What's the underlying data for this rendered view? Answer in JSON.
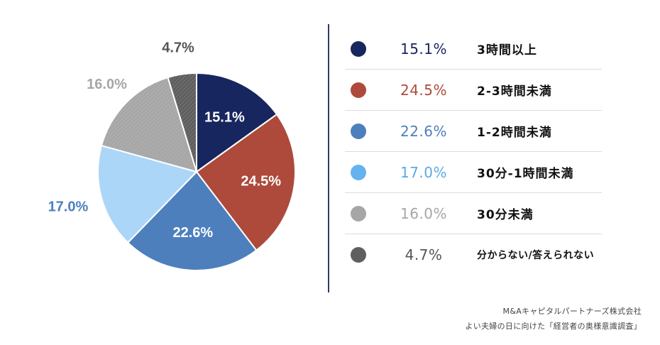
{
  "chart_data": {
    "type": "pie",
    "slices": [
      {
        "label": "3時間以上",
        "value": 15.1,
        "display": "15.1%",
        "color": "#17265e"
      },
      {
        "label": "2-3時間未満",
        "value": 24.5,
        "display": "24.5%",
        "color": "#ad4a3b"
      },
      {
        "label": "1-2時間未満",
        "value": 22.6,
        "display": "22.6%",
        "color": "#4d7fbd"
      },
      {
        "label": "30分-1時間未満",
        "value": 17.0,
        "display": "17.0%",
        "color": "#abd6f8"
      },
      {
        "label": "30分未満",
        "value": 16.0,
        "display": "16.0%",
        "color": "#a6a6a6"
      },
      {
        "label": "分からない/答えられない",
        "value": 4.7,
        "display": "4.7%",
        "color": "#5f5f5f"
      }
    ]
  },
  "legend": {
    "pct_colors": [
      "#17265e",
      "#ad4a3b",
      "#4d7fbd",
      "#5aa9e6",
      "#a6a6a6",
      "#555555"
    ],
    "dot_colors": [
      "#17265e",
      "#ad4a3b",
      "#4d7fbd",
      "#64b2ee",
      "#a6a6a6",
      "#5f5f5f"
    ]
  },
  "source": {
    "line1": "M&Aキャピタルパートナーズ株式会社",
    "line2": "よい夫婦の日に向けた「経営者の奥様意識調査」"
  }
}
